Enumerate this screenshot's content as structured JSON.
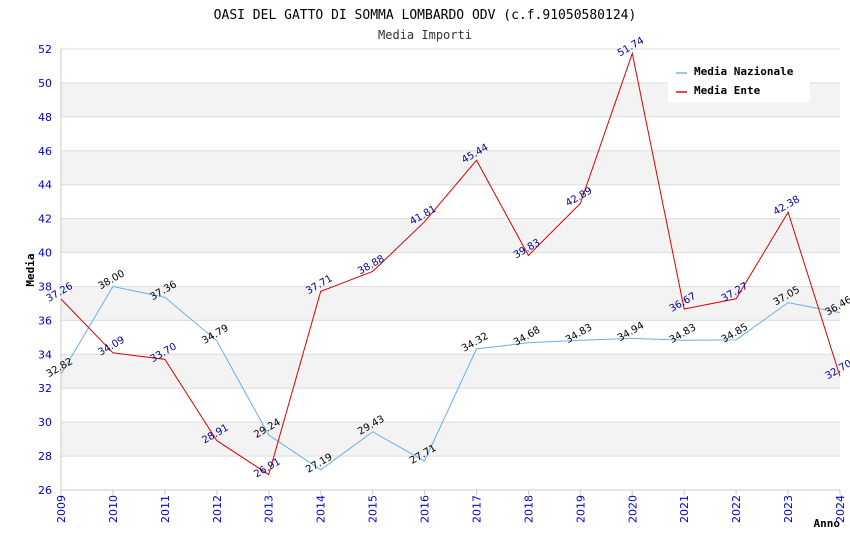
{
  "chart_data": {
    "type": "line",
    "title": "OASI DEL GATTO DI SOMMA LOMBARDO ODV (c.f.91050580124)",
    "subtitle": "Media Importi",
    "xlabel": "Anno",
    "ylabel": "Media",
    "ylim": [
      26,
      52
    ],
    "yticks": [
      26,
      28,
      30,
      32,
      34,
      36,
      38,
      40,
      42,
      44,
      46,
      48,
      50,
      52
    ],
    "x": [
      "2009",
      "2010",
      "2011",
      "2012",
      "2013",
      "2014",
      "2015",
      "2016",
      "2017",
      "2018",
      "2019",
      "2020",
      "2021",
      "2022",
      "2023",
      "2024"
    ],
    "grid": true,
    "legend_position": "top-right",
    "series": [
      {
        "name": "Media Nazionale",
        "color": "#6aaee8",
        "values": [
          32.82,
          38.0,
          37.36,
          34.79,
          29.24,
          27.19,
          29.43,
          27.71,
          34.32,
          34.68,
          34.83,
          34.94,
          34.83,
          34.85,
          37.05,
          36.46
        ],
        "labels": [
          "32.82",
          "38.00",
          "37.36",
          "34.79",
          "29.24",
          "27.19",
          "29.43",
          "27.71",
          "34.32",
          "34.68",
          "34.83",
          "34.94",
          "34.83",
          "34.85",
          "37.05",
          "36.46"
        ]
      },
      {
        "name": "Media Ente",
        "color": "#dd0000",
        "values": [
          37.26,
          34.09,
          33.7,
          28.91,
          26.91,
          37.71,
          38.88,
          41.81,
          45.44,
          39.83,
          42.89,
          51.74,
          36.67,
          37.27,
          42.38,
          32.7
        ],
        "labels": [
          "37.26",
          "34.09",
          "33.70",
          "28.91",
          "26.91",
          "37.71",
          "38.88",
          "41.81",
          "45.44",
          "39.83",
          "42.89",
          "51.74",
          "36.67",
          "37.27",
          "42.38",
          "32.70"
        ]
      }
    ]
  }
}
